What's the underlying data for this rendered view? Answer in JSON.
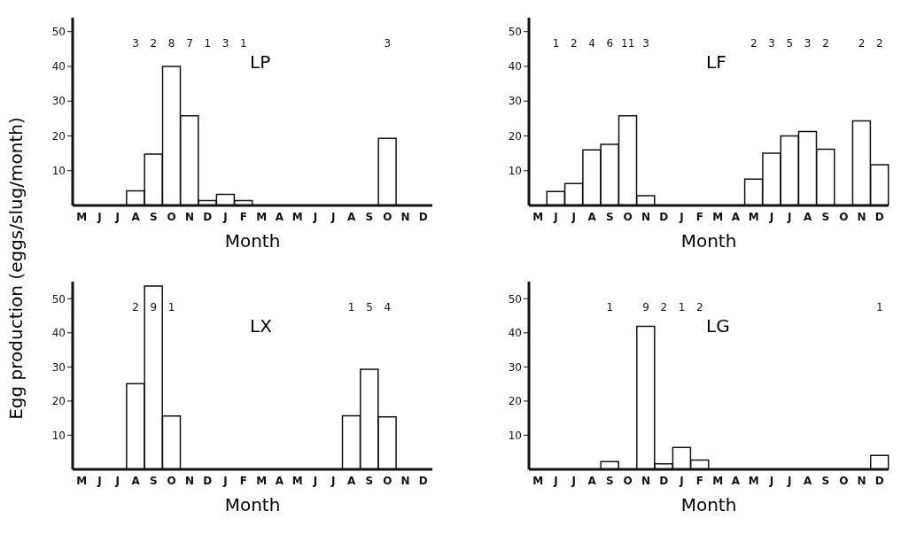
{
  "chart_data": [
    {
      "type": "bar",
      "title": "LP",
      "xlabel": "Month",
      "ylabel": "Egg production (eggs/slug/month)",
      "categories": [
        "M",
        "J",
        "J",
        "A",
        "S",
        "O",
        "N",
        "D",
        "J",
        "F",
        "M",
        "A",
        "M",
        "J",
        "J",
        "A",
        "S",
        "O",
        "N",
        "D"
      ],
      "values": [
        0,
        0,
        0,
        4.2,
        14.8,
        40,
        25.8,
        1.4,
        3.2,
        1.4,
        0,
        0,
        0,
        0,
        0,
        0,
        0,
        19.3,
        0,
        0
      ],
      "color": "#ffffff",
      "ylim": [
        0,
        54
      ],
      "yticks": [
        10,
        20,
        30,
        40,
        50
      ],
      "annotations": [
        "3",
        "2",
        "8",
        "7",
        "1",
        "3",
        "1",
        "3"
      ]
    },
    {
      "type": "bar",
      "title": "LF",
      "xlabel": "Month",
      "categories": [
        "M",
        "J",
        "J",
        "A",
        "S",
        "O",
        "N",
        "D",
        "J",
        "F",
        "M",
        "A",
        "M",
        "J",
        "J",
        "A",
        "S",
        "O",
        "N",
        "D"
      ],
      "values": [
        0,
        4,
        6.3,
        16,
        17.6,
        25.8,
        2.8,
        0,
        0,
        0,
        0,
        0,
        7.6,
        15,
        20,
        21.3,
        16.2,
        0,
        24.3,
        11.7
      ],
      "color": "#ffffff",
      "ylim": [
        0,
        54
      ],
      "yticks": [
        10,
        20,
        30,
        40,
        50
      ],
      "annotations": [
        "1",
        "2",
        "4",
        "6",
        "11",
        "3",
        "2",
        "3",
        "5",
        "3",
        "2",
        "2",
        "2"
      ]
    },
    {
      "type": "bar",
      "title": "LX",
      "xlabel": "Month",
      "categories": [
        "M",
        "J",
        "J",
        "A",
        "S",
        "O",
        "N",
        "D",
        "J",
        "F",
        "M",
        "A",
        "M",
        "J",
        "J",
        "A",
        "S",
        "O",
        "N",
        "D"
      ],
      "values": [
        0,
        0,
        0,
        25.1,
        53.7,
        15.6,
        0,
        0,
        0,
        0,
        0,
        0,
        0,
        0,
        0,
        15.7,
        29.3,
        15.4,
        0,
        0
      ],
      "color": "#ffffff",
      "ylim": [
        0,
        55
      ],
      "yticks": [
        10,
        20,
        30,
        40,
        50
      ],
      "annotations": [
        "2",
        "9",
        "1",
        "1",
        "5",
        "4"
      ]
    },
    {
      "type": "bar",
      "title": "LG",
      "xlabel": "Month",
      "categories": [
        "M",
        "J",
        "J",
        "A",
        "S",
        "O",
        "N",
        "D",
        "J",
        "F",
        "M",
        "A",
        "M",
        "J",
        "J",
        "A",
        "S",
        "O",
        "N",
        "D"
      ],
      "values": [
        0,
        0,
        0,
        0,
        2.3,
        0,
        41.9,
        1.6,
        6.4,
        2.7,
        0,
        0,
        0,
        0,
        0,
        0,
        0,
        0,
        0,
        4.1
      ],
      "color": "#ffffff",
      "ylim": [
        0,
        55
      ],
      "yticks": [
        10,
        20,
        30,
        40,
        50
      ],
      "annotations": [
        "1",
        "9",
        "2",
        "1",
        "2",
        "1"
      ]
    }
  ]
}
